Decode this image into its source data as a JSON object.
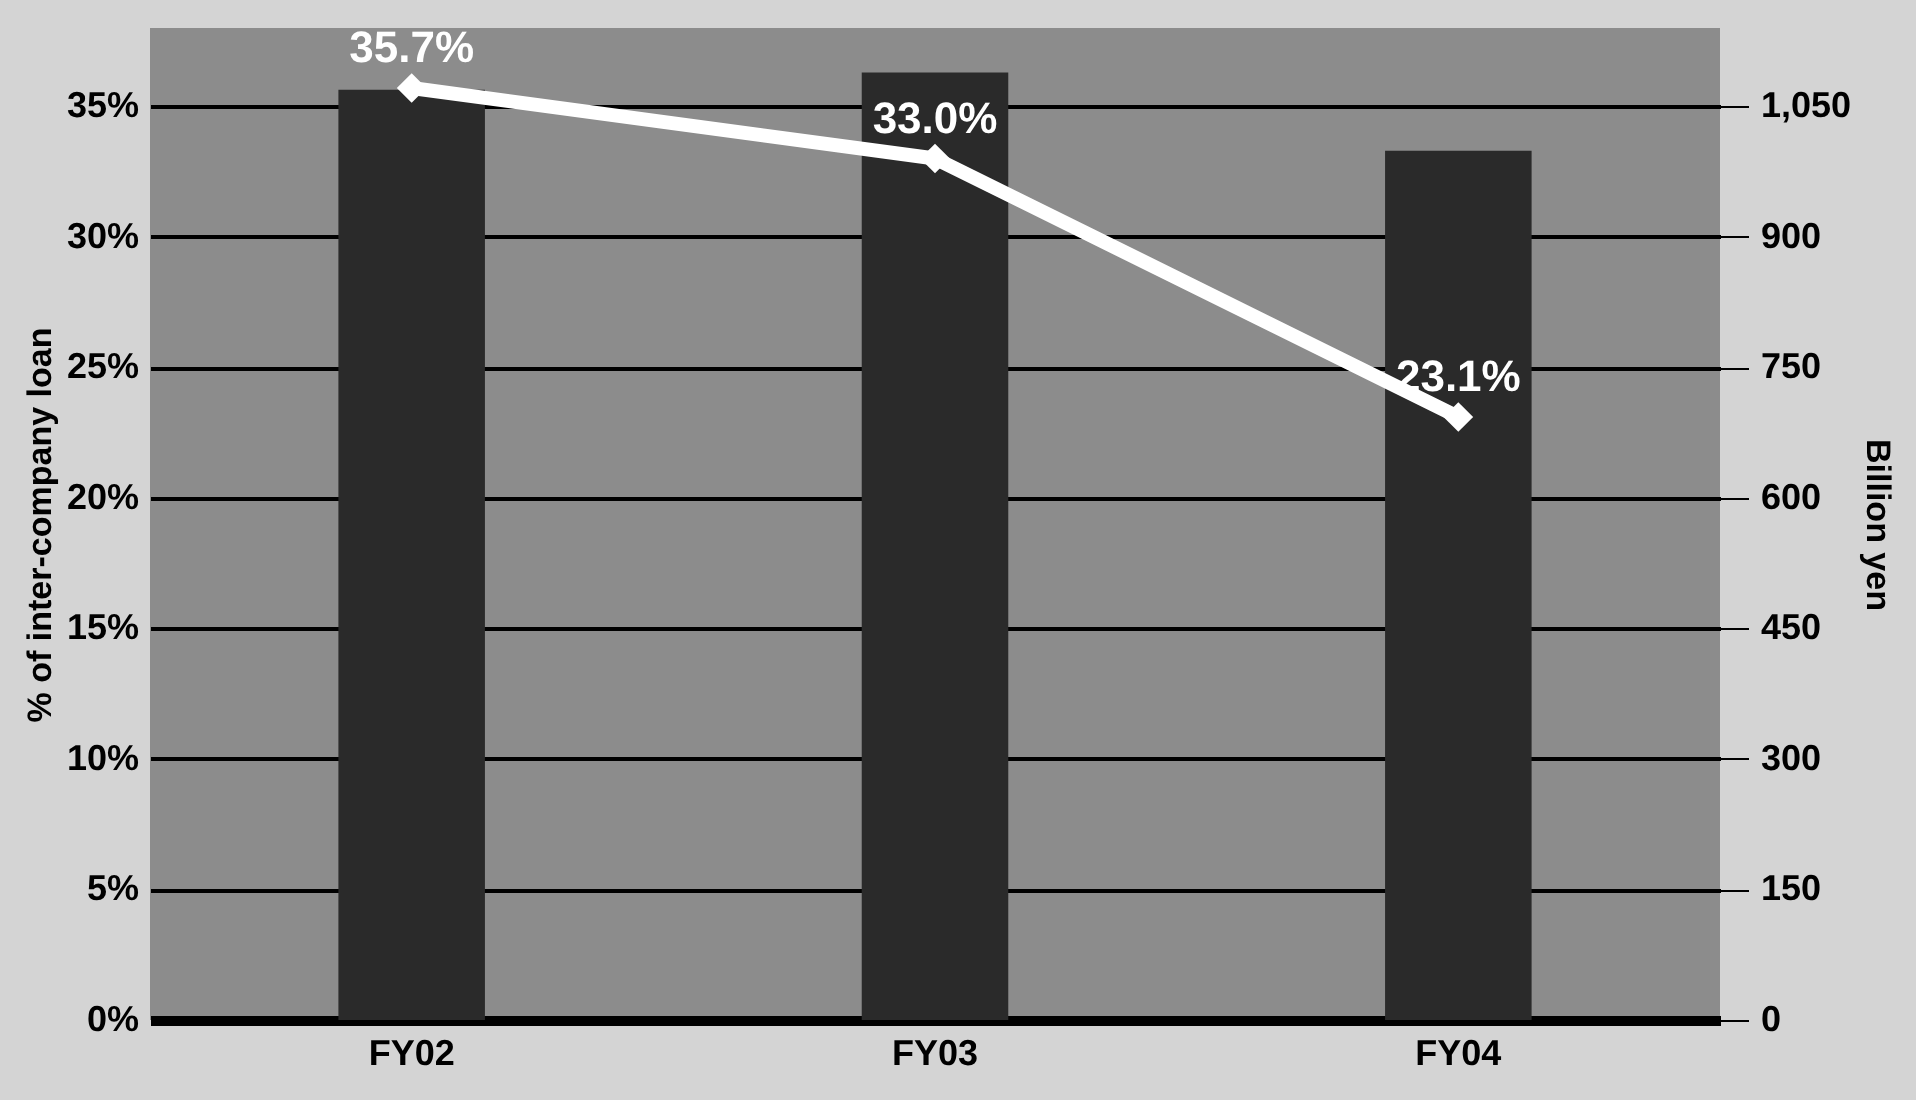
{
  "chart_data": {
    "type": "bar",
    "ylabel": "% of inter-company loan",
    "y2label": "Billion yen",
    "categories": [
      "FY02",
      "FY03",
      "FY04"
    ],
    "ylim": [
      0,
      38
    ],
    "yticks": [
      {
        "value": 0,
        "label": "0%"
      },
      {
        "value": 5,
        "label": "5%"
      },
      {
        "value": 10,
        "label": "10%"
      },
      {
        "value": 15,
        "label": "15%"
      },
      {
        "value": 20,
        "label": "20%"
      },
      {
        "value": 25,
        "label": "25%"
      },
      {
        "value": 30,
        "label": "30%"
      },
      {
        "value": 35,
        "label": "35%"
      }
    ],
    "y2lim": [
      0,
      1140
    ],
    "y2ticks": [
      0,
      150,
      300,
      450,
      600,
      750,
      900,
      {
        "value": 1050,
        "label": "1,050"
      }
    ],
    "grid": "y",
    "marker": "diamond",
    "series": [
      {
        "axis": "y2",
        "color": "#2a2a2a",
        "values": [
          1069,
          1089,
          999
        ]
      },
      {
        "type": "line",
        "axis": "y",
        "color": "#ffffff",
        "values": [
          35.7,
          33.0,
          23.1
        ],
        "value_labels": [
          "35.7%",
          "33.0%",
          "23.1%"
        ]
      }
    ]
  }
}
